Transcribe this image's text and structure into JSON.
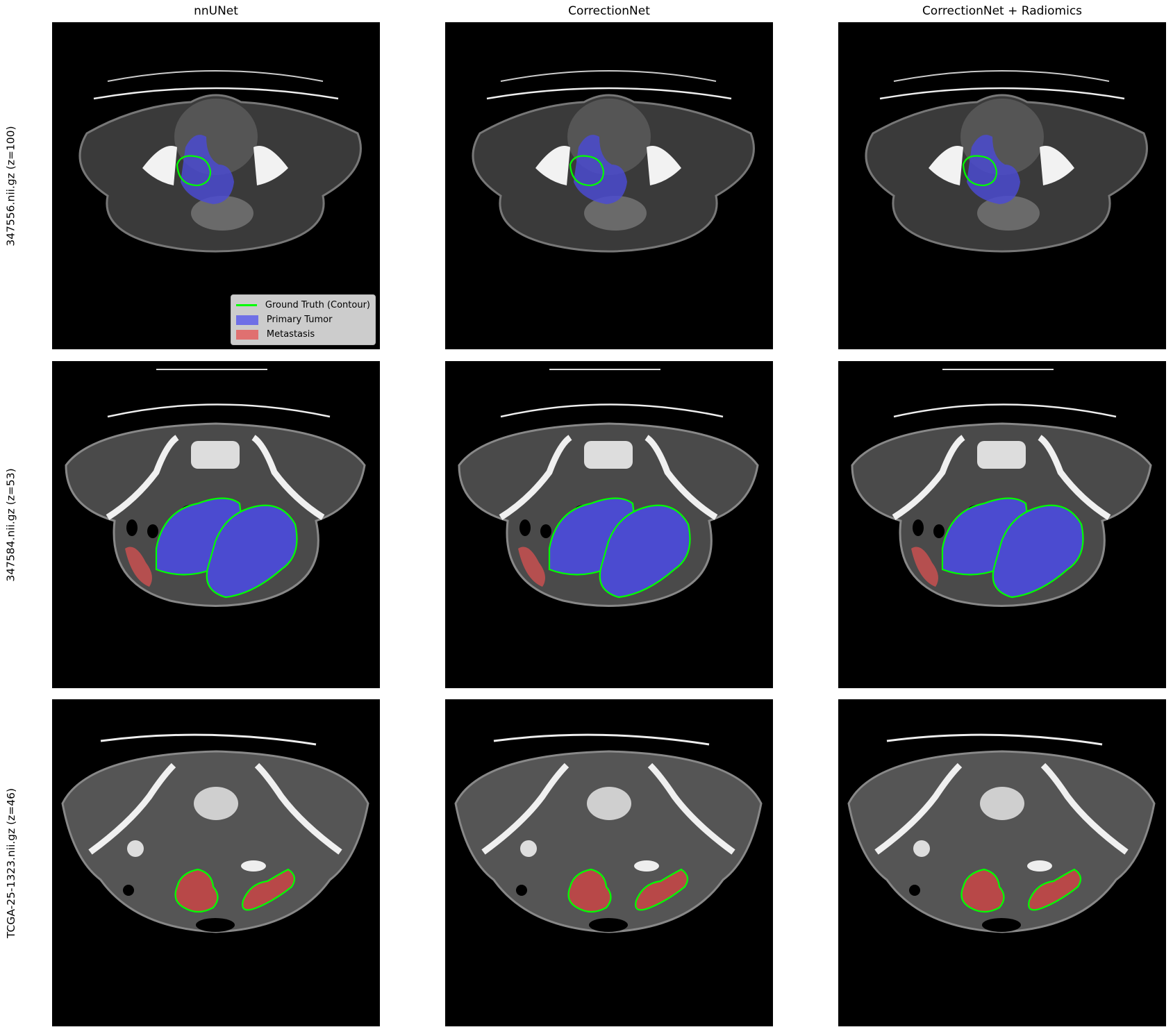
{
  "figure": {
    "columns": [
      "nnUNet",
      "CorrectionNet",
      "CorrectionNet + Radiomics"
    ],
    "rows": [
      "347556.nii.gz (z=100)",
      "347584.nii.gz (z=53)",
      "TCGA-25-1323.nii.gz (z=46)"
    ]
  },
  "legend": {
    "items": [
      {
        "label": "Ground Truth (Contour)",
        "kind": "line",
        "color": "#00ff00"
      },
      {
        "label": "Primary Tumor",
        "kind": "patch",
        "color": "#6f6fe6"
      },
      {
        "label": "Metastasis",
        "kind": "patch",
        "color": "#e07070"
      }
    ]
  },
  "colors": {
    "primary_tumor": "#4040ff",
    "metastasis": "#ff3030",
    "ground_truth": "#00ff00"
  }
}
